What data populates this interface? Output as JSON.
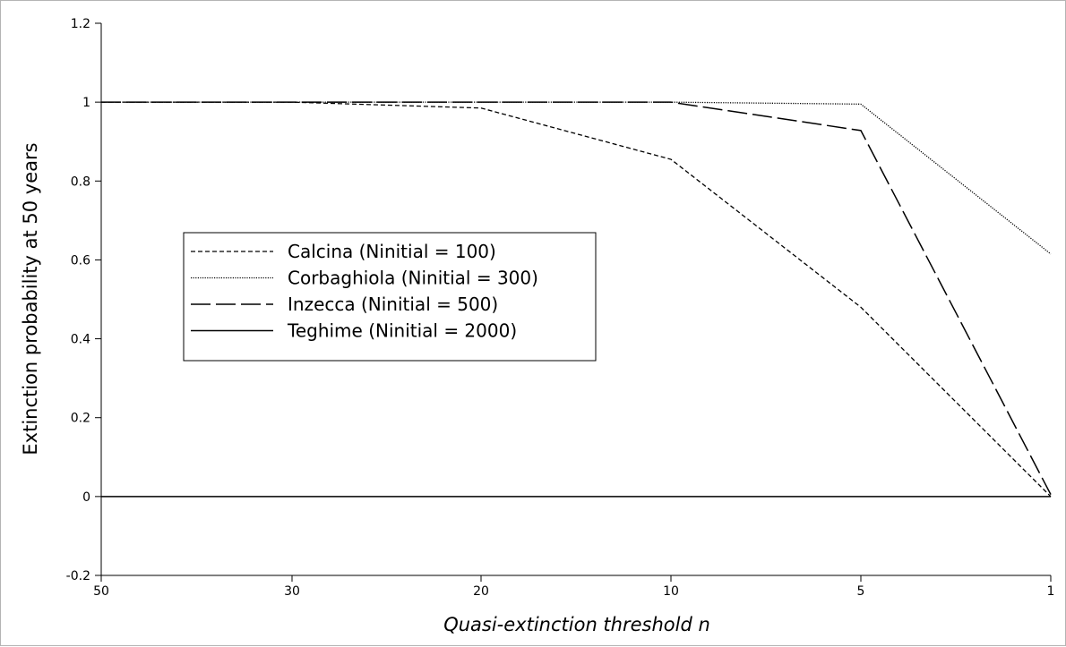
{
  "chart_data": {
    "type": "line",
    "title": "",
    "xlabel": "Quasi-extinction threshold n",
    "ylabel": "Extinction probability at 50 years",
    "categories": [
      "50",
      "30",
      "20",
      "10",
      "5",
      "1"
    ],
    "yticks": [
      "1.2",
      "1",
      "0.8",
      "0.6",
      "0.4",
      "0.2",
      "0",
      "-0.2"
    ],
    "ylim": [
      -0.2,
      1.2
    ],
    "grid": false,
    "legend_position": "center-left",
    "series": [
      {
        "name": "Calcina (Ninitial = 100)",
        "style": "short-dash",
        "values": [
          1.0,
          1.0,
          0.985,
          0.855,
          0.48,
          0.0
        ]
      },
      {
        "name": "Corbaghiola (Ninitial = 300)",
        "style": "dotted",
        "values": [
          1.0,
          1.0,
          1.0,
          1.0,
          0.995,
          0.615
        ]
      },
      {
        "name": "Inzecca (Ninitial = 500)",
        "style": "long-dash",
        "values": [
          1.0,
          1.0,
          1.0,
          1.0,
          0.928,
          0.005
        ]
      },
      {
        "name": "Teghime (Ninitial = 2000)",
        "style": "solid",
        "values": [
          0.0,
          0.0,
          0.0,
          0.0,
          0.0,
          0.0
        ]
      }
    ]
  }
}
